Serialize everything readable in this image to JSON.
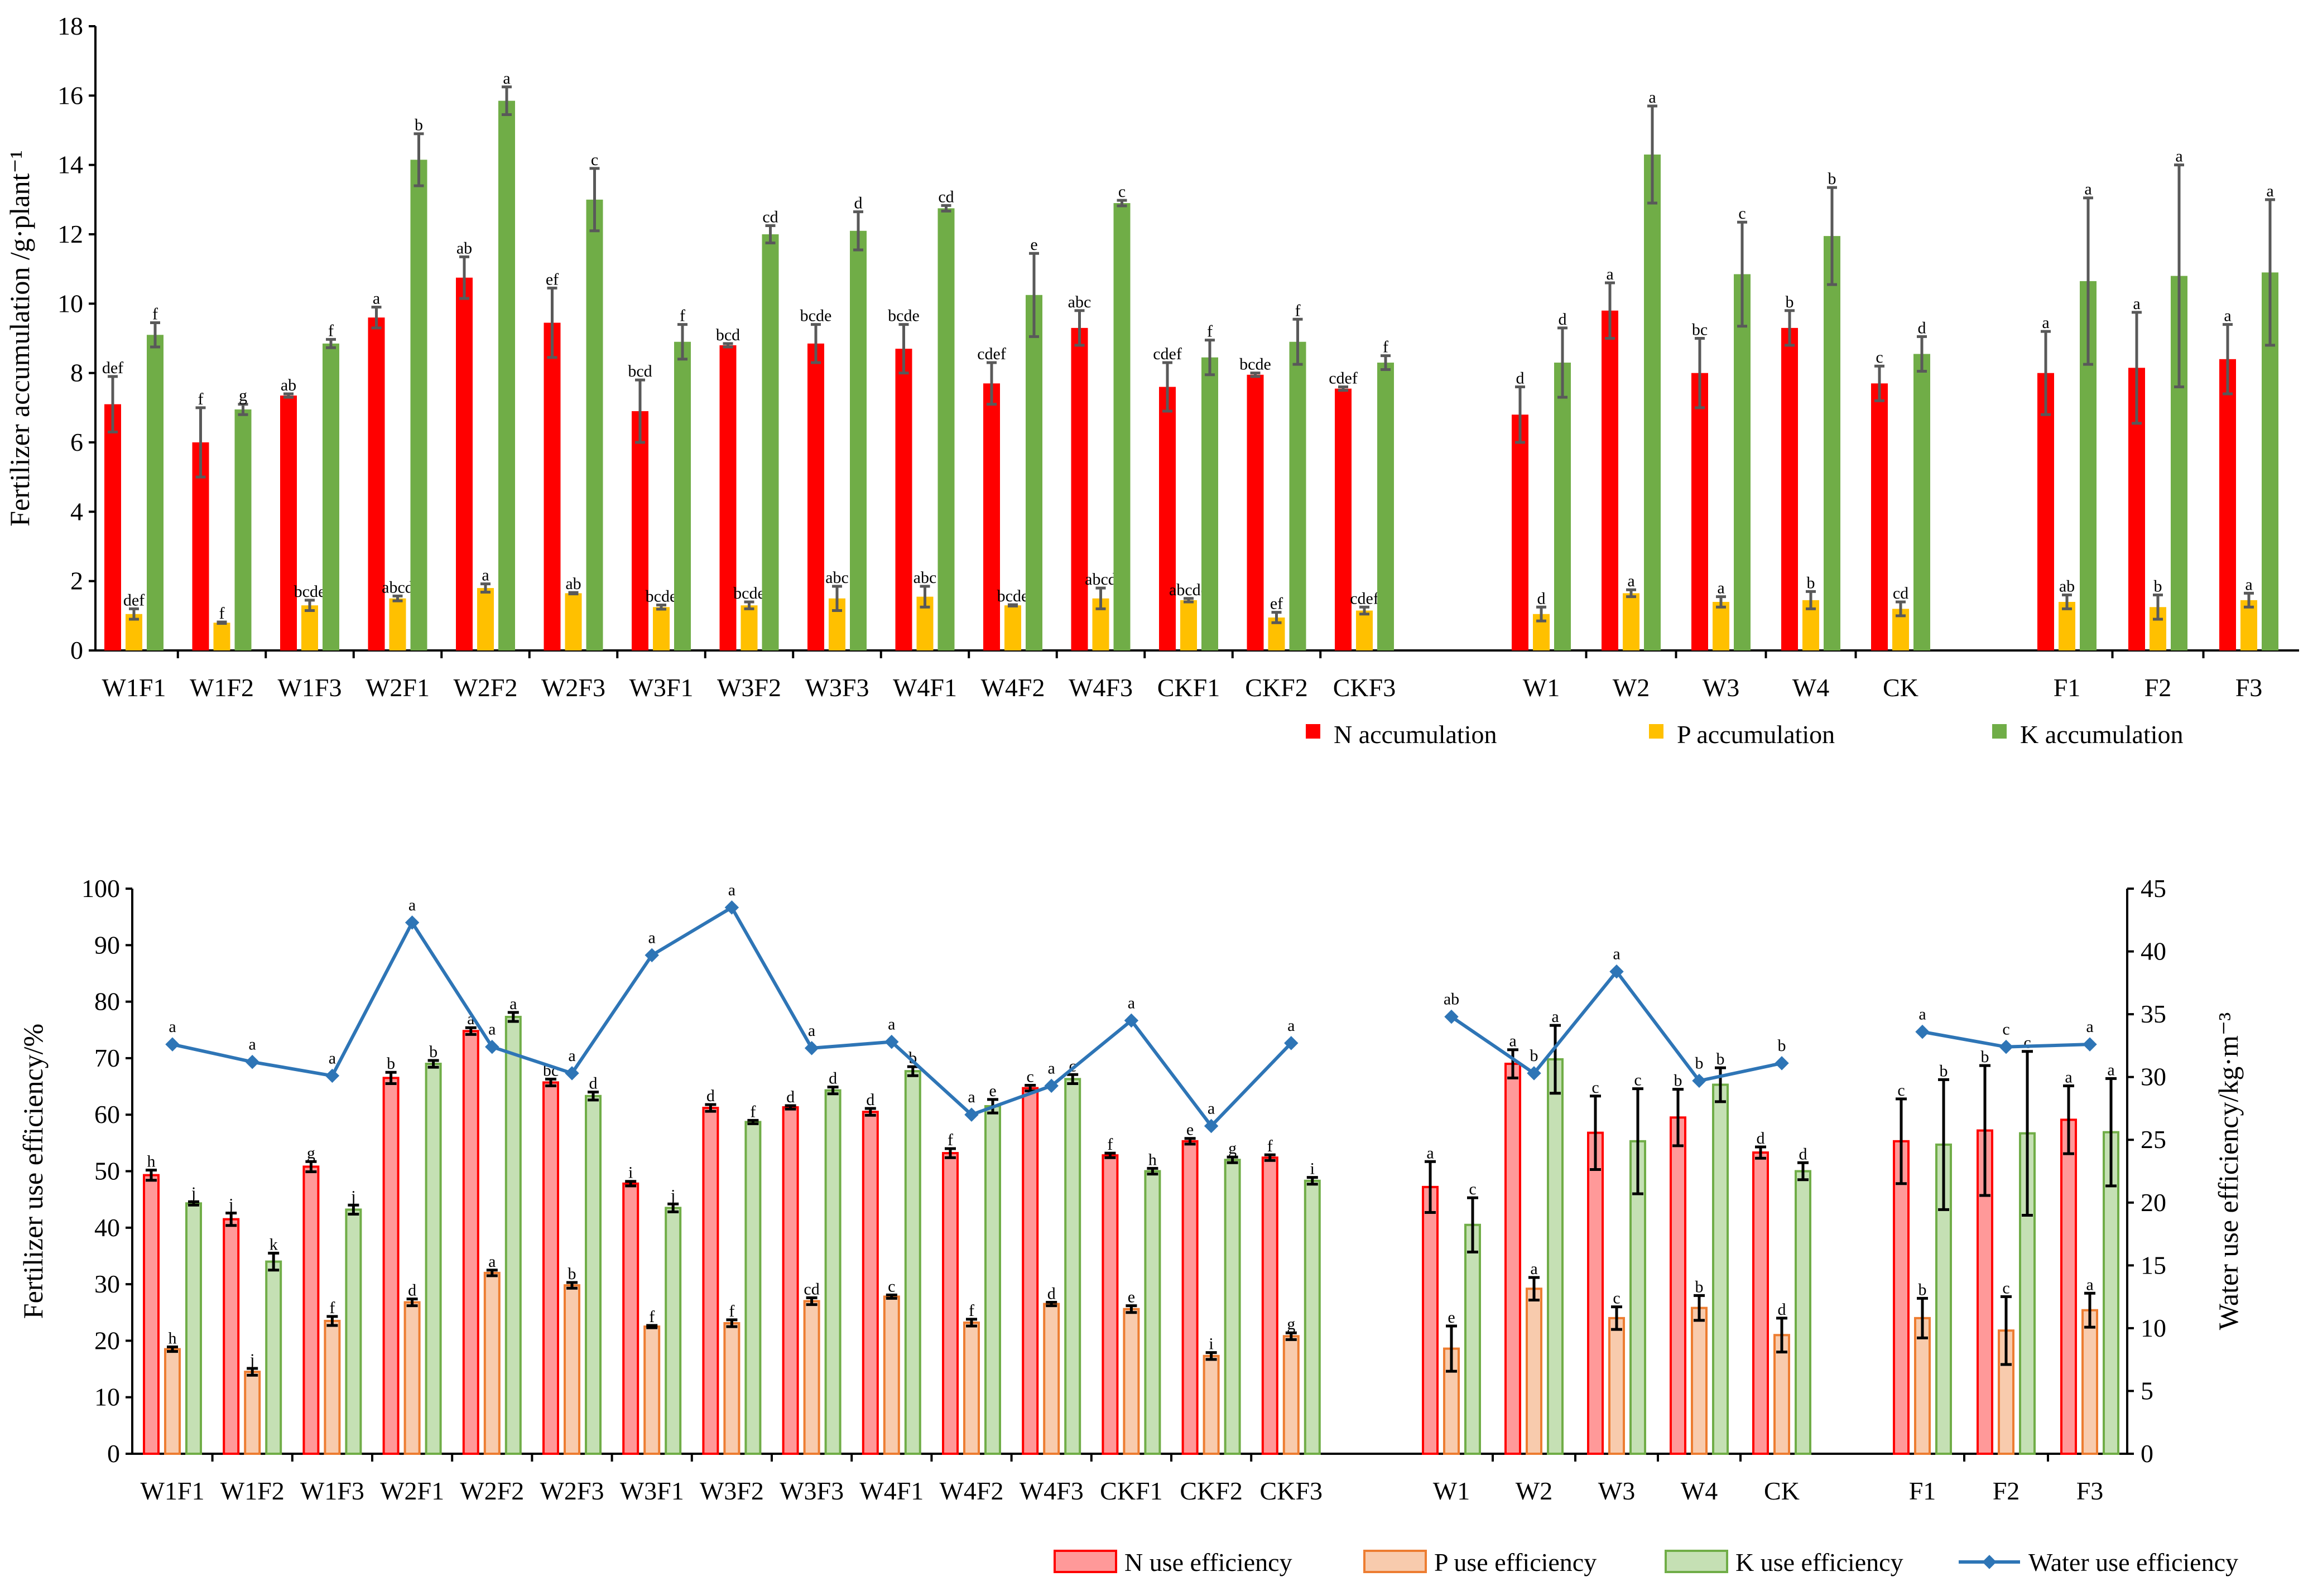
{
  "chart_data": [
    {
      "type": "bar",
      "title": "",
      "ylabel": "Fertilizer accumulation /g·plant⁻¹",
      "ylim": [
        0,
        18
      ],
      "yticks": [
        0,
        2,
        4,
        6,
        8,
        10,
        12,
        14,
        16,
        18
      ],
      "groups": [
        [
          "W1F1",
          "W1F2",
          "W1F3",
          "W2F1",
          "W2F2",
          "W2F3",
          "W3F1",
          "W3F2",
          "W3F3",
          "W4F1",
          "W4F2",
          "W4F3",
          "CKF1",
          "CKF2",
          "CKF3"
        ],
        [
          "W1",
          "W2",
          "W3",
          "W4",
          "CK"
        ],
        [
          "F1",
          "F2",
          "F3"
        ]
      ],
      "series": [
        {
          "name": "N accumulation",
          "color": "#ff0000",
          "values": [
            7.1,
            6.0,
            7.35,
            9.6,
            10.75,
            9.45,
            6.9,
            8.8,
            8.85,
            8.7,
            7.7,
            9.3,
            7.6,
            7.95,
            7.55,
            6.8,
            9.8,
            8.0,
            9.3,
            7.7,
            8.0,
            8.15,
            8.4
          ],
          "errors": [
            0.8,
            1.0,
            0.05,
            0.3,
            0.6,
            1.0,
            0.9,
            0.05,
            0.55,
            0.7,
            0.6,
            0.5,
            0.7,
            0.05,
            0.05,
            0.8,
            0.8,
            1.0,
            0.5,
            0.5,
            1.2,
            1.6,
            1.0
          ],
          "letters": [
            "def",
            "f",
            "ab",
            "a",
            "ab",
            "ef",
            "bcd",
            "bcd",
            "bcde",
            "bcde",
            "cdef",
            "abc",
            "cdef",
            "bcde",
            "cdef",
            "d",
            "a",
            "bc",
            "b",
            "c",
            "a",
            "a",
            "a"
          ]
        },
        {
          "name": "P accumulation",
          "color": "#ffc000",
          "values": [
            1.05,
            0.8,
            1.3,
            1.5,
            1.8,
            1.65,
            1.25,
            1.3,
            1.5,
            1.55,
            1.3,
            1.5,
            1.45,
            0.95,
            1.15,
            1.05,
            1.65,
            1.4,
            1.45,
            1.2,
            1.4,
            1.25,
            1.45
          ],
          "errors": [
            0.15,
            0.02,
            0.15,
            0.07,
            0.12,
            0.02,
            0.06,
            0.1,
            0.35,
            0.3,
            0.02,
            0.3,
            0.05,
            0.15,
            0.1,
            0.2,
            0.1,
            0.15,
            0.25,
            0.2,
            0.2,
            0.35,
            0.2
          ],
          "letters": [
            "def",
            "f",
            "bcde",
            "abcd",
            "a",
            "ab",
            "bcde",
            "bcde",
            "abc",
            "abc",
            "bcde",
            "abcd",
            "abcde",
            "ef",
            "cdef",
            "d",
            "a",
            "a",
            "b",
            "cd",
            "ab",
            "b",
            "a"
          ]
        },
        {
          "name": "K accumulation",
          "color": "#70ad47",
          "values": [
            9.1,
            6.95,
            8.85,
            14.15,
            15.85,
            13.0,
            8.9,
            12.0,
            12.1,
            12.75,
            10.25,
            12.9,
            8.45,
            8.9,
            8.3,
            8.3,
            14.3,
            10.85,
            11.95,
            8.55,
            10.65,
            10.8,
            10.9
          ],
          "errors": [
            0.35,
            0.15,
            0.12,
            0.75,
            0.4,
            0.9,
            0.5,
            0.25,
            0.55,
            0.08,
            1.2,
            0.08,
            0.5,
            0.65,
            0.2,
            1.0,
            1.4,
            1.5,
            1.4,
            0.5,
            2.4,
            3.2,
            2.1
          ],
          "letters": [
            "f",
            "g",
            "f",
            "b",
            "a",
            "c",
            "f",
            "cd",
            "d",
            "cd",
            "e",
            "c",
            "f",
            "f",
            "f",
            "d",
            "a",
            "c",
            "b",
            "d",
            "a",
            "a",
            "a"
          ]
        }
      ],
      "legend": "bottom-right"
    },
    {
      "type": "bar+line",
      "ylabel": "Fertilizer use efficiency/%",
      "y2label": "Water use efficiency/kg·m⁻³",
      "ylim": [
        0,
        100
      ],
      "yticks": [
        0,
        10,
        20,
        30,
        40,
        50,
        60,
        70,
        80,
        90,
        100
      ],
      "y2lim": [
        0,
        45
      ],
      "y2ticks": [
        0,
        5,
        10,
        15,
        20,
        25,
        30,
        35,
        40,
        45
      ],
      "groups": [
        [
          "W1F1",
          "W1F2",
          "W1F3",
          "W2F1",
          "W2F2",
          "W2F3",
          "W3F1",
          "W3F2",
          "W3F3",
          "W4F1",
          "W4F2",
          "W4F3",
          "CKF1",
          "CKF2",
          "CKF3"
        ],
        [
          "W1",
          "W2",
          "W3",
          "W4",
          "CK"
        ],
        [
          "F1",
          "F2",
          "F3"
        ]
      ],
      "series": [
        {
          "name": "N use efficiency",
          "fill": "#ff9999",
          "stroke": "#ff0000",
          "values": [
            49.3,
            41.5,
            50.8,
            66.5,
            74.8,
            65.7,
            47.8,
            61.2,
            61.3,
            60.5,
            53.2,
            64.7,
            52.8,
            55.3,
            52.4,
            47.2,
            69.0,
            56.8,
            59.5,
            53.3,
            55.3,
            57.2,
            59.1
          ],
          "errors": [
            0.9,
            1.1,
            0.9,
            1.0,
            0.6,
            0.6,
            0.4,
            0.6,
            0.3,
            0.6,
            0.8,
            0.5,
            0.4,
            0.5,
            0.5,
            4.5,
            2.5,
            6.5,
            5.0,
            1.0,
            7.5,
            11.5,
            6.0
          ],
          "letters": [
            "h",
            "j",
            "g",
            "b",
            "a",
            "bc",
            "i",
            "d",
            "d",
            "d",
            "f",
            "c",
            "f",
            "e",
            "f",
            "a",
            "a",
            "c",
            "b",
            "d",
            "c",
            "b",
            "a"
          ]
        },
        {
          "name": "P use efficiency",
          "fill": "#f8cbad",
          "stroke": "#ed7d31",
          "values": [
            18.5,
            14.5,
            23.5,
            26.8,
            32.0,
            29.8,
            22.5,
            23.1,
            27.0,
            27.8,
            23.2,
            26.5,
            25.6,
            17.3,
            20.8,
            18.6,
            29.2,
            24.0,
            25.8,
            21.0,
            24.0,
            21.8,
            25.4
          ],
          "errors": [
            0.4,
            0.6,
            0.8,
            0.6,
            0.5,
            0.5,
            0.2,
            0.6,
            0.6,
            0.3,
            0.6,
            0.3,
            0.6,
            0.6,
            0.6,
            4.0,
            2.0,
            2.0,
            2.2,
            3.0,
            3.5,
            6.0,
            3.0
          ],
          "letters": [
            "h",
            "j",
            "f",
            "d",
            "a",
            "b",
            "f",
            "f",
            "cd",
            "c",
            "f",
            "d",
            "e",
            "i",
            "g",
            "e",
            "a",
            "c",
            "b",
            "d",
            "b",
            "c",
            "a"
          ]
        },
        {
          "name": "K use efficiency",
          "fill": "#c5e0b4",
          "stroke": "#70ad47",
          "values": [
            44.3,
            34.0,
            43.2,
            69.0,
            77.3,
            63.3,
            43.5,
            58.7,
            64.3,
            67.7,
            61.5,
            66.3,
            50.0,
            52.0,
            48.3,
            40.5,
            69.8,
            55.3,
            65.3,
            50.0,
            54.7,
            56.7,
            56.9
          ],
          "errors": [
            0.3,
            1.5,
            0.8,
            0.6,
            0.8,
            0.7,
            0.7,
            0.3,
            0.6,
            0.8,
            1.2,
            0.8,
            0.5,
            0.5,
            0.6,
            4.8,
            6.0,
            9.3,
            3.0,
            1.5,
            11.5,
            14.5,
            9.5
          ],
          "letters": [
            "j",
            "k",
            "j",
            "b",
            "a",
            "d",
            "j",
            "f",
            "d",
            "b",
            "e",
            "c",
            "h",
            "g",
            "i",
            "c",
            "a",
            "c",
            "b",
            "d",
            "b",
            "c",
            "a"
          ]
        }
      ],
      "line": {
        "name": "Water use efficiency",
        "color": "#2e75b6",
        "values": [
          32.6,
          31.2,
          30.1,
          42.3,
          32.4,
          30.3,
          39.7,
          43.5,
          32.3,
          32.8,
          27.0,
          29.3,
          34.5,
          26.1,
          32.7,
          34.8,
          30.3,
          38.4,
          29.7,
          31.1,
          33.6,
          32.4,
          32.6
        ],
        "letters": [
          "a",
          "a",
          "a",
          "a",
          "a",
          "a",
          "a",
          "a",
          "a",
          "a",
          "a",
          "a",
          "a",
          "a",
          "a",
          "ab",
          "b",
          "a",
          "b",
          "b",
          "a",
          "c",
          "a"
        ]
      },
      "legend": "bottom"
    }
  ]
}
